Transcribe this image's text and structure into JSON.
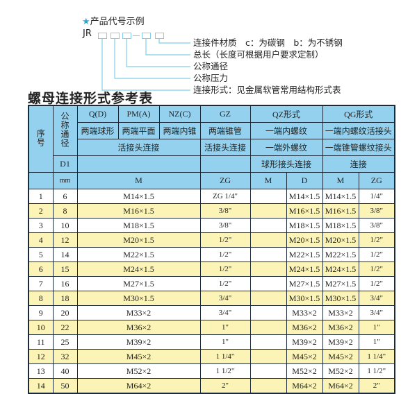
{
  "example": {
    "header": "产品代号示例",
    "prefix": "JR",
    "labels": [
      "连接件材质　c：为碳钢　b：为不锈钢",
      "总长（长度可根据用户要求定制）",
      "公称通径",
      "公称压力",
      "连接形式：见金属软管常用结构形式表"
    ],
    "colors": {
      "star": "#2aa7d8",
      "lines": "#7fd0e8"
    }
  },
  "title": "螺母连接形式参考表",
  "table": {
    "header": {
      "seq": "序号",
      "dn": "公称通径",
      "d1": "D1",
      "mm": "mm",
      "q": "Q(D)",
      "pm": "PM(A)",
      "nz": "NZ(C)",
      "gz": "GZ",
      "qz": "QZ形式",
      "qg": "QG形式",
      "q2": "两端球形",
      "pm2": "两端平面",
      "nz2": "两端内锥",
      "gz2": "两端锥管",
      "qz2": "一端内螺纹",
      "qg2": "一端内螺纹活接头",
      "hjt": "活接头连接",
      "gz3": "活接头连接",
      "qz3": "一端外螺纹",
      "qg3": "一端锥管螺纹接头",
      "qz4": "球形接头连接",
      "qg4": "连接",
      "m": "M",
      "zg": "ZG",
      "qzm": "M",
      "qzd": "D",
      "qgm": "M",
      "qgzg": "ZG"
    },
    "colors": {
      "header": "#94d1ef",
      "stripe": "#fbf4b6"
    },
    "rows": [
      [
        "1",
        "6",
        "M14×1.5",
        "ZG 1/4\"",
        "",
        "M14×1.5",
        "M14×1.5",
        "1/4\""
      ],
      [
        "2",
        "8",
        "M16×1.5",
        "3/8\"",
        "",
        "M16×1.5",
        "M16×1.5",
        "3/8\""
      ],
      [
        "3",
        "10",
        "M18×1.5",
        "3/8\"",
        "",
        "M18×1.5",
        "M18×1.5",
        "3/8\""
      ],
      [
        "4",
        "12",
        "M20×1.5",
        "1/2\"",
        "",
        "M20×1.5",
        "M20×1.5",
        "1/2\""
      ],
      [
        "5",
        "14",
        "M22×1.5",
        "1/2\"",
        "",
        "M22×1.5",
        "M22×1.5",
        "1/2\""
      ],
      [
        "6",
        "15",
        "M24×1.5",
        "1/2\"",
        "",
        "M24×1.5",
        "M24×1.5",
        "1/2\""
      ],
      [
        "7",
        "16",
        "M27×1.5",
        "1/2\"",
        "",
        "M27×1.5",
        "M27×1.5",
        "1/2\""
      ],
      [
        "8",
        "18",
        "M30×1.5",
        "3/4\"",
        "",
        "M30×1.5",
        "M30×1.5",
        "3/4\""
      ],
      [
        "9",
        "20",
        "M33×2",
        "3/4\"",
        "",
        "M33×2",
        "M33×2",
        "3/4\""
      ],
      [
        "10",
        "22",
        "M36×2",
        "1\"",
        "",
        "M36×2",
        "M36×2",
        "1\""
      ],
      [
        "11",
        "25",
        "M39×2",
        "1\"",
        "",
        "M39×2",
        "M39×2",
        "1\""
      ],
      [
        "12",
        "32",
        "M45×2",
        "1 1/4\"",
        "",
        "M45×2",
        "M45×2",
        "1 1/4\""
      ],
      [
        "13",
        "40",
        "M52×2",
        "1 1/2\"",
        "",
        "M52×2",
        "M52×2",
        "1 1/2\""
      ],
      [
        "14",
        "50",
        "M64×2",
        "2\"",
        "",
        "M64×2",
        "M64×2",
        "2\""
      ]
    ]
  }
}
